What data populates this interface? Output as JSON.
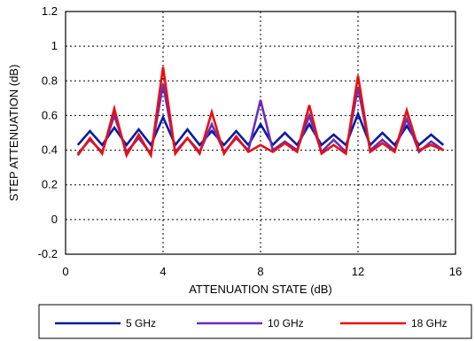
{
  "chart_data": {
    "type": "line",
    "title": "",
    "xlabel": "ATTENUATION STATE (dB)",
    "ylabel": "STEP ATTENUATION (dB)",
    "xlim": [
      0,
      16
    ],
    "ylim": [
      -0.2,
      1.2
    ],
    "xticks": [
      "0",
      "4",
      "8",
      "12",
      "16"
    ],
    "yticks": [
      "-0.2",
      "0",
      "0.2",
      "0.4",
      "0.6",
      "0.8",
      "1",
      "1.2"
    ],
    "grid": true,
    "legend_position": "bottom",
    "x": [
      0.5,
      1,
      1.5,
      2,
      2.5,
      3,
      3.5,
      4,
      4.5,
      5,
      5.5,
      6,
      6.5,
      7,
      7.5,
      8,
      8.5,
      9,
      9.5,
      10,
      10.5,
      11,
      11.5,
      12,
      12.5,
      13,
      13.5,
      14,
      14.5,
      15,
      15.5
    ],
    "series": [
      {
        "name": "5 GHz",
        "color": "#0a1aa0",
        "values": [
          0.43,
          0.51,
          0.43,
          0.53,
          0.43,
          0.52,
          0.43,
          0.59,
          0.43,
          0.52,
          0.43,
          0.51,
          0.43,
          0.51,
          0.43,
          0.55,
          0.43,
          0.5,
          0.43,
          0.55,
          0.43,
          0.49,
          0.43,
          0.61,
          0.43,
          0.5,
          0.43,
          0.54,
          0.43,
          0.49,
          0.43
        ]
      },
      {
        "name": "10 GHz",
        "color": "#6a2bc0",
        "values": [
          0.38,
          0.46,
          0.39,
          0.6,
          0.39,
          0.47,
          0.38,
          0.78,
          0.39,
          0.47,
          0.39,
          0.55,
          0.39,
          0.47,
          0.4,
          0.69,
          0.4,
          0.45,
          0.4,
          0.6,
          0.39,
          0.46,
          0.39,
          0.76,
          0.4,
          0.46,
          0.4,
          0.58,
          0.39,
          0.45,
          0.4
        ]
      },
      {
        "name": "18 GHz",
        "color": "#e81010",
        "values": [
          0.37,
          0.47,
          0.38,
          0.64,
          0.37,
          0.49,
          0.37,
          0.88,
          0.38,
          0.47,
          0.38,
          0.62,
          0.38,
          0.48,
          0.39,
          0.43,
          0.39,
          0.44,
          0.39,
          0.66,
          0.38,
          0.43,
          0.38,
          0.83,
          0.39,
          0.44,
          0.39,
          0.63,
          0.4,
          0.43,
          0.4
        ]
      }
    ]
  }
}
